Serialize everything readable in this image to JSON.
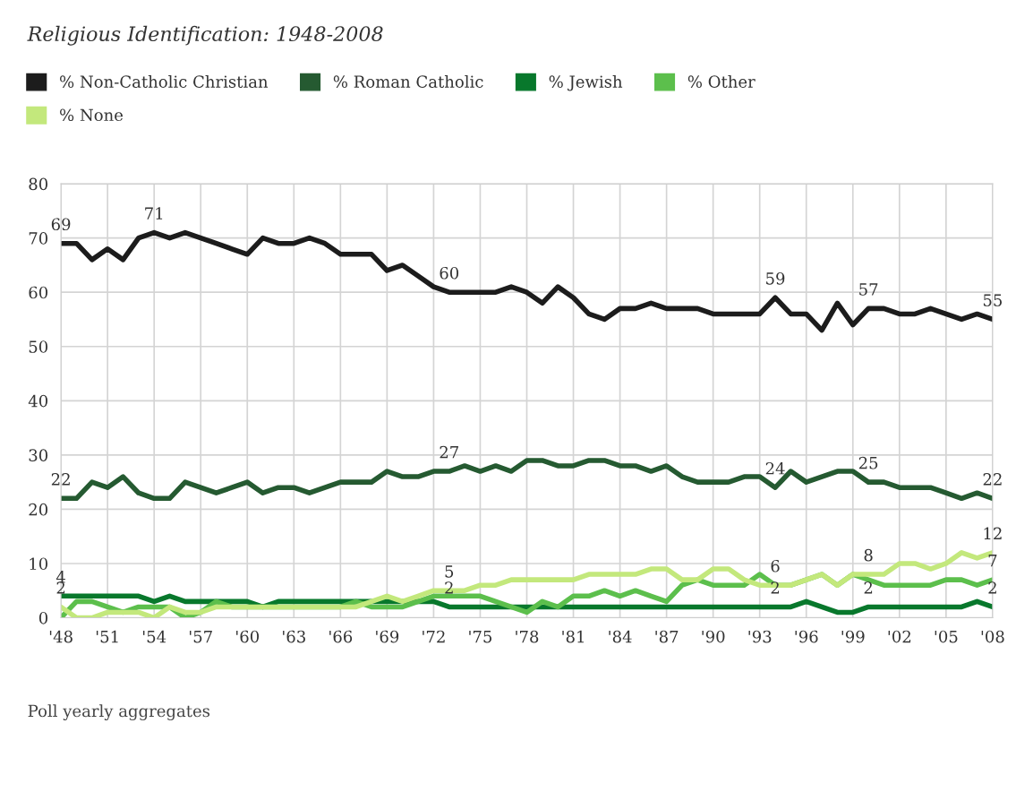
{
  "chart_data": {
    "type": "line",
    "title": "Religious Identification: 1948-2008",
    "x": [
      1948,
      1949,
      1950,
      1951,
      1952,
      1953,
      1954,
      1955,
      1956,
      1957,
      1958,
      1959,
      1960,
      1961,
      1962,
      1963,
      1964,
      1965,
      1966,
      1967,
      1968,
      1969,
      1970,
      1971,
      1972,
      1973,
      1974,
      1975,
      1976,
      1977,
      1978,
      1979,
      1980,
      1981,
      1982,
      1983,
      1984,
      1985,
      1986,
      1987,
      1988,
      1989,
      1990,
      1991,
      1992,
      1993,
      1994,
      1995,
      1996,
      1997,
      1998,
      1999,
      2000,
      2001,
      2002,
      2003,
      2004,
      2005,
      2006,
      2007,
      2008
    ],
    "series": [
      {
        "name": "% Non-Catholic Christian",
        "color": "#1c1c1c",
        "values": [
          69,
          69,
          66,
          68,
          66,
          70,
          71,
          70,
          71,
          70,
          69,
          68,
          67,
          70,
          69,
          69,
          70,
          69,
          67,
          67,
          67,
          64,
          65,
          63,
          61,
          60,
          60,
          60,
          60,
          61,
          60,
          58,
          61,
          59,
          56,
          55,
          57,
          57,
          58,
          57,
          57,
          57,
          56,
          56,
          56,
          56,
          59,
          56,
          56,
          53,
          58,
          54,
          57,
          57,
          56,
          56,
          57,
          56,
          55,
          56,
          55
        ],
        "value_labels": [
          "69",
          null,
          null,
          null,
          null,
          null,
          "71",
          null,
          null,
          null,
          null,
          null,
          null,
          null,
          null,
          null,
          null,
          null,
          null,
          null,
          null,
          null,
          null,
          null,
          null,
          "60",
          null,
          null,
          null,
          null,
          null,
          null,
          null,
          null,
          null,
          null,
          null,
          null,
          null,
          null,
          null,
          null,
          null,
          null,
          null,
          null,
          "59",
          null,
          null,
          null,
          null,
          null,
          "57",
          null,
          null,
          null,
          null,
          null,
          null,
          null,
          "55"
        ]
      },
      {
        "name": "% Roman Catholic",
        "color": "#255a31",
        "values": [
          22,
          22,
          25,
          24,
          26,
          23,
          22,
          22,
          25,
          24,
          23,
          24,
          25,
          23,
          24,
          24,
          23,
          24,
          25,
          25,
          25,
          27,
          26,
          26,
          27,
          27,
          28,
          27,
          28,
          27,
          29,
          29,
          28,
          28,
          29,
          29,
          28,
          28,
          27,
          28,
          26,
          25,
          25,
          25,
          26,
          26,
          24,
          27,
          25,
          26,
          27,
          27,
          25,
          25,
          24,
          24,
          24,
          23,
          22,
          23,
          22
        ],
        "value_labels": [
          "22",
          null,
          null,
          null,
          null,
          null,
          null,
          null,
          null,
          null,
          null,
          null,
          null,
          null,
          null,
          null,
          null,
          null,
          null,
          null,
          null,
          null,
          null,
          null,
          null,
          "27",
          null,
          null,
          null,
          null,
          null,
          null,
          null,
          null,
          null,
          null,
          null,
          null,
          null,
          null,
          null,
          null,
          null,
          null,
          null,
          null,
          "24",
          null,
          null,
          null,
          null,
          null,
          "25",
          null,
          null,
          null,
          null,
          null,
          null,
          null,
          "22"
        ]
      },
      {
        "name": "% Jewish",
        "color": "#08782c",
        "values": [
          4,
          4,
          4,
          4,
          4,
          4,
          3,
          4,
          3,
          3,
          3,
          3,
          3,
          2,
          3,
          3,
          3,
          3,
          3,
          3,
          3,
          3,
          3,
          3,
          3,
          2,
          2,
          2,
          2,
          2,
          2,
          2,
          2,
          2,
          2,
          2,
          2,
          2,
          2,
          2,
          2,
          2,
          2,
          2,
          2,
          2,
          2,
          2,
          3,
          2,
          1,
          1,
          2,
          2,
          2,
          2,
          2,
          2,
          2,
          3,
          2
        ],
        "value_labels": [
          "4",
          null,
          null,
          null,
          null,
          null,
          null,
          null,
          null,
          null,
          null,
          null,
          null,
          null,
          null,
          null,
          null,
          null,
          null,
          null,
          null,
          null,
          null,
          null,
          null,
          "2",
          null,
          null,
          null,
          null,
          null,
          null,
          null,
          null,
          null,
          null,
          null,
          null,
          null,
          null,
          null,
          null,
          null,
          null,
          null,
          null,
          "2",
          null,
          null,
          null,
          null,
          null,
          "2",
          null,
          null,
          null,
          null,
          null,
          null,
          null,
          "2"
        ]
      },
      {
        "name": "% Other",
        "color": "#5cbf4c",
        "values": [
          0,
          3,
          3,
          2,
          1,
          2,
          2,
          2,
          0,
          1,
          3,
          2,
          2,
          2,
          2,
          2,
          2,
          2,
          2,
          3,
          2,
          2,
          2,
          3,
          4,
          4,
          4,
          4,
          3,
          2,
          1,
          3,
          2,
          4,
          4,
          5,
          4,
          5,
          4,
          3,
          6,
          7,
          6,
          6,
          6,
          8,
          6,
          6,
          7,
          8,
          6,
          8,
          7,
          6,
          6,
          6,
          6,
          7,
          7,
          6,
          7
        ],
        "value_labels": [
          null,
          null,
          null,
          null,
          null,
          null,
          null,
          null,
          null,
          null,
          null,
          null,
          null,
          null,
          null,
          null,
          null,
          null,
          null,
          null,
          null,
          null,
          null,
          null,
          null,
          null,
          null,
          null,
          null,
          null,
          null,
          null,
          null,
          null,
          null,
          null,
          null,
          null,
          null,
          null,
          null,
          null,
          null,
          null,
          null,
          null,
          null,
          null,
          null,
          null,
          null,
          null,
          null,
          null,
          null,
          null,
          null,
          null,
          null,
          null,
          "7"
        ]
      },
      {
        "name": "% None",
        "color": "#c3e87c",
        "values": [
          2,
          0,
          0,
          1,
          1,
          1,
          0,
          2,
          1,
          1,
          2,
          2,
          2,
          2,
          2,
          2,
          2,
          2,
          2,
          2,
          3,
          4,
          3,
          4,
          5,
          5,
          5,
          6,
          6,
          7,
          7,
          7,
          7,
          7,
          8,
          8,
          8,
          8,
          9,
          9,
          7,
          7,
          9,
          9,
          7,
          6,
          6,
          6,
          7,
          8,
          6,
          8,
          8,
          8,
          10,
          10,
          9,
          10,
          12,
          11,
          12
        ],
        "value_labels": [
          "2",
          null,
          null,
          null,
          null,
          null,
          null,
          null,
          null,
          null,
          null,
          null,
          null,
          null,
          null,
          null,
          null,
          null,
          null,
          null,
          null,
          null,
          null,
          null,
          null,
          "5",
          null,
          null,
          null,
          null,
          null,
          null,
          null,
          null,
          null,
          null,
          null,
          null,
          null,
          null,
          null,
          null,
          null,
          null,
          null,
          null,
          "6",
          null,
          null,
          null,
          null,
          null,
          "8",
          null,
          null,
          null,
          null,
          null,
          null,
          null,
          "12"
        ]
      }
    ],
    "xlim": [
      1948,
      2008
    ],
    "xticks": [
      {
        "value": 1948,
        "label": "'48"
      },
      {
        "value": 1951,
        "label": "'51"
      },
      {
        "value": 1954,
        "label": "'54"
      },
      {
        "value": 1957,
        "label": "'57"
      },
      {
        "value": 1960,
        "label": "'60"
      },
      {
        "value": 1963,
        "label": "'63"
      },
      {
        "value": 1966,
        "label": "'66"
      },
      {
        "value": 1969,
        "label": "'69"
      },
      {
        "value": 1972,
        "label": "'72"
      },
      {
        "value": 1975,
        "label": "'75"
      },
      {
        "value": 1978,
        "label": "'78"
      },
      {
        "value": 1981,
        "label": "'81"
      },
      {
        "value": 1984,
        "label": "'84"
      },
      {
        "value": 1987,
        "label": "'87"
      },
      {
        "value": 1990,
        "label": "'90"
      },
      {
        "value": 1993,
        "label": "'93"
      },
      {
        "value": 1996,
        "label": "'96"
      },
      {
        "value": 1999,
        "label": "'99"
      },
      {
        "value": 2002,
        "label": "'02"
      },
      {
        "value": 2005,
        "label": "'05"
      },
      {
        "value": 2008,
        "label": "'08"
      }
    ],
    "ylim": [
      0,
      80
    ],
    "yticks": [
      0,
      10,
      20,
      30,
      40,
      50,
      60,
      70,
      80
    ],
    "grid": true,
    "legend": "top",
    "marker": "none",
    "line_style": "solid",
    "annotations": [
      "Poll yearly aggregates"
    ]
  }
}
